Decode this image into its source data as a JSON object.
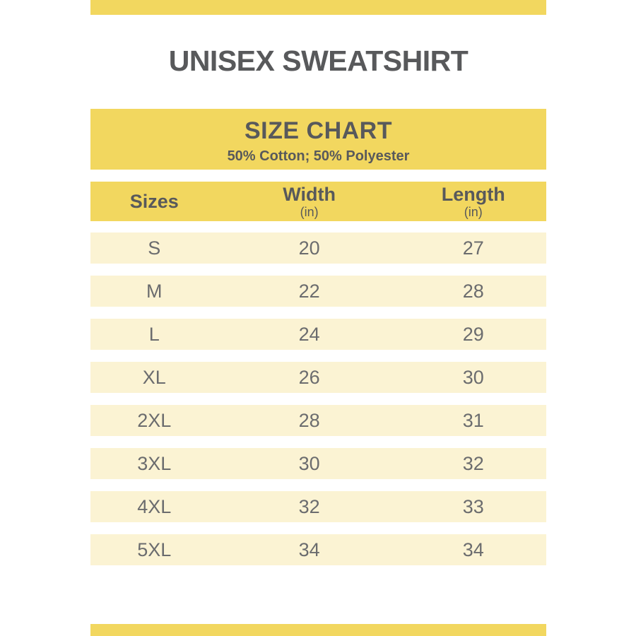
{
  "page": {
    "title": "UNISEX SWEATSHIRT"
  },
  "size_chart": {
    "title": "SIZE CHART",
    "subtitle": "50% Cotton; 50% Polyester",
    "columns": [
      {
        "label": "Sizes",
        "unit": ""
      },
      {
        "label": "Width",
        "unit": "(in)"
      },
      {
        "label": "Length",
        "unit": "(in)"
      }
    ],
    "rows": [
      {
        "size": "S",
        "width": "20",
        "length": "27"
      },
      {
        "size": "M",
        "width": "22",
        "length": "28"
      },
      {
        "size": "L",
        "width": "24",
        "length": "29"
      },
      {
        "size": "XL",
        "width": "26",
        "length": "30"
      },
      {
        "size": "2XL",
        "width": "28",
        "length": "31"
      },
      {
        "size": "3XL",
        "width": "30",
        "length": "32"
      },
      {
        "size": "4XL",
        "width": "32",
        "length": "33"
      },
      {
        "size": "5XL",
        "width": "34",
        "length": "34"
      }
    ]
  },
  "colors": {
    "accent_yellow": "#F2D75F",
    "row_cream": "#FBF3D3",
    "heading_text": "#58595B",
    "cell_text": "#6B6C6E"
  },
  "chart_data": {
    "type": "table",
    "title": "SIZE CHART",
    "subtitle": "50% Cotton; 50% Polyester",
    "columns": [
      "Sizes",
      "Width (in)",
      "Length (in)"
    ],
    "rows": [
      [
        "S",
        20,
        27
      ],
      [
        "M",
        22,
        28
      ],
      [
        "L",
        24,
        29
      ],
      [
        "XL",
        26,
        30
      ],
      [
        "2XL",
        28,
        31
      ],
      [
        "3XL",
        30,
        32
      ],
      [
        "4XL",
        32,
        33
      ],
      [
        "5XL",
        34,
        34
      ]
    ]
  }
}
